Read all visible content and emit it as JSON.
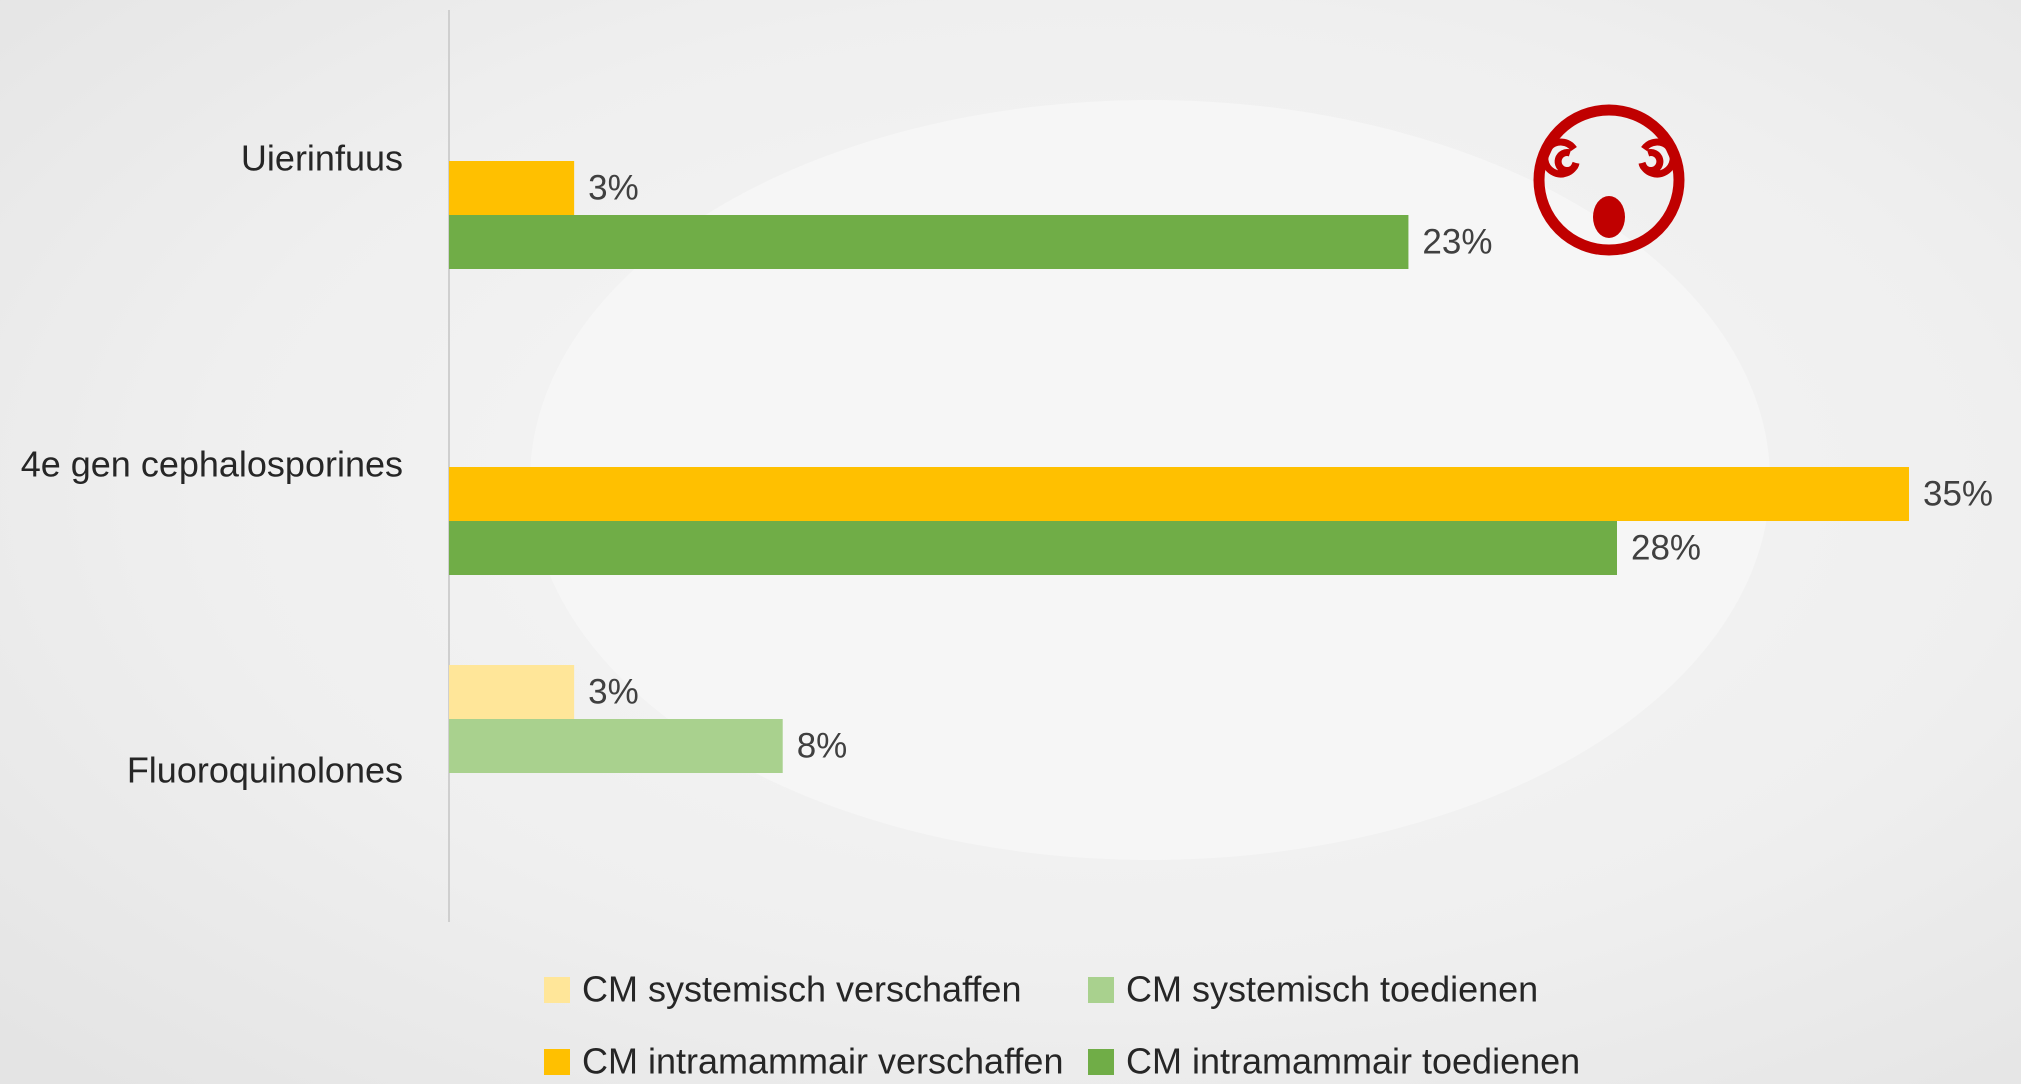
{
  "chart_data": {
    "type": "hbar",
    "categories": [
      "Uierinfuus",
      "4e gen cephalosporines",
      "Fluoroquinolones"
    ],
    "series": [
      {
        "name": "CM systemisch verschaffen",
        "color": "#ffe699",
        "values": [
          null,
          null,
          3
        ],
        "value_labels": [
          null,
          null,
          "3%"
        ]
      },
      {
        "name": "CM systemisch toedienen",
        "color": "#a9d18e",
        "values": [
          null,
          null,
          8
        ],
        "value_labels": [
          null,
          null,
          "8%"
        ]
      },
      {
        "name": "CM intramammair verschaffen",
        "color": "#ffc000",
        "values": [
          3,
          35,
          null
        ],
        "value_labels": [
          "3%",
          "35%",
          null
        ]
      },
      {
        "name": "CM intramammair toedienen",
        "color": "#70ad47",
        "values": [
          23,
          28,
          null
        ],
        "value_labels": [
          "23%",
          "28%",
          null
        ]
      }
    ],
    "xlim": [
      0,
      35
    ]
  }
}
